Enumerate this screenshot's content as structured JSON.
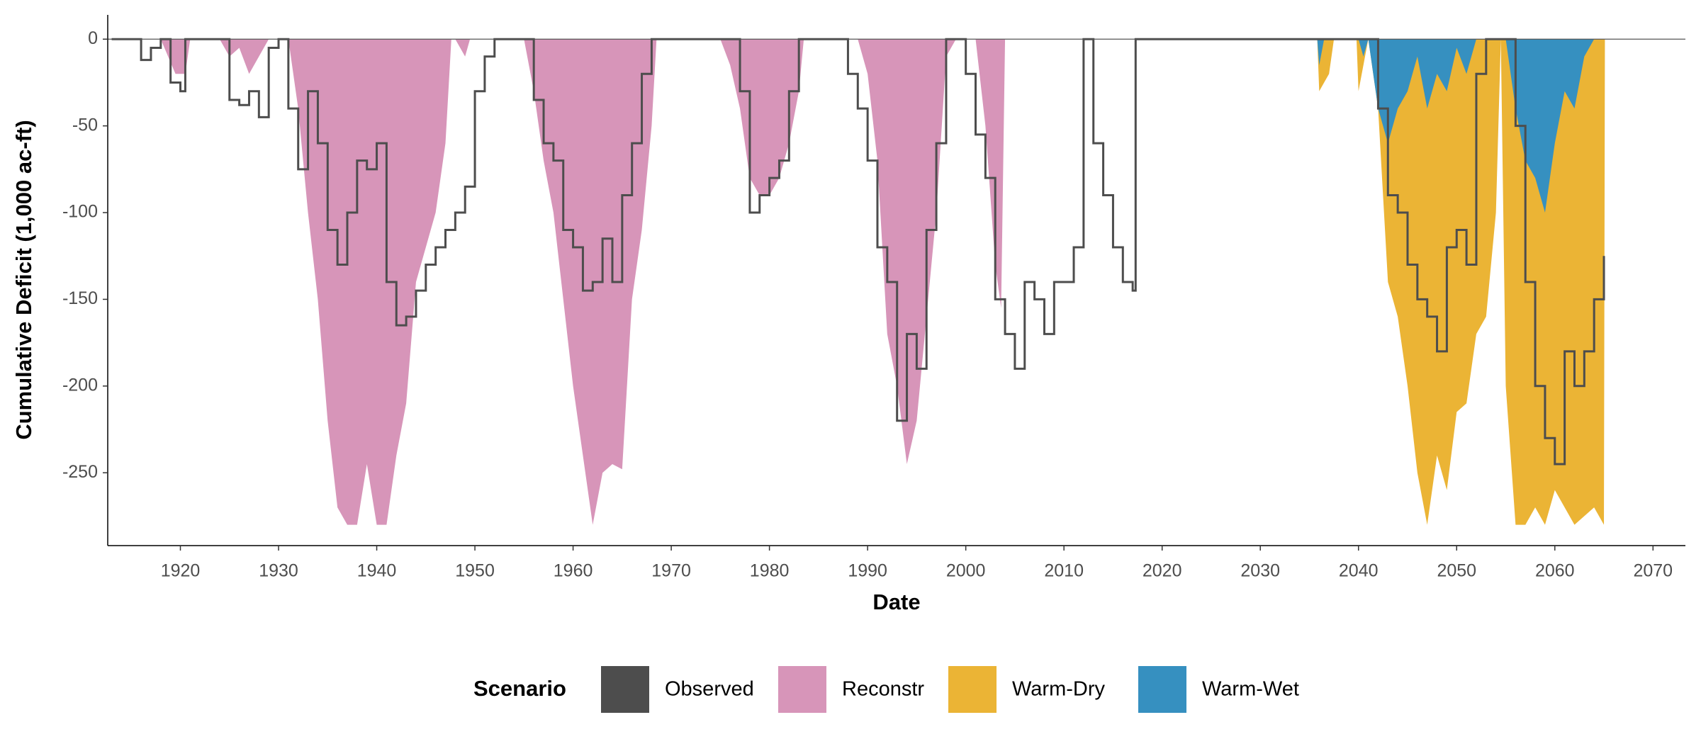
{
  "chart_data": {
    "type": "area",
    "x_label": "Date",
    "y_label": "Cumulative Deficit (1,000 ac-ft)",
    "legend_title": "Scenario",
    "legend_position": "bottom",
    "xlim": [
      1912.6,
      2073.3
    ],
    "ylim": [
      -292,
      14
    ],
    "xticks": [
      1920,
      1930,
      1940,
      1950,
      1960,
      1970,
      1980,
      1990,
      2000,
      2010,
      2020,
      2030,
      2040,
      2050,
      2060,
      2070
    ],
    "yticks": [
      -250,
      -200,
      -150,
      -100,
      -50,
      0
    ],
    "hline": 0,
    "series": [
      {
        "name": "Observed",
        "color": "#4d4d4d",
        "kind": "line",
        "step": true,
        "x": [
          1913,
          1915,
          1916,
          1917,
          1918,
          1919,
          1920,
          1920.5,
          1924,
          1925,
          1926,
          1927,
          1928,
          1929,
          1930,
          1931,
          1932,
          1933,
          1934,
          1935,
          1936,
          1937,
          1938,
          1939,
          1940,
          1941,
          1942,
          1943,
          1944,
          1945,
          1946,
          1947,
          1948,
          1949,
          1950,
          1951,
          1952,
          1955,
          1956,
          1957,
          1958,
          1959,
          1960,
          1961,
          1962,
          1963,
          1964,
          1965,
          1966,
          1967,
          1968,
          1975,
          1977,
          1978,
          1979,
          1980,
          1981,
          1982,
          1983,
          1987,
          1988,
          1989,
          1990,
          1991,
          1992,
          1993,
          1994,
          1995,
          1996,
          1997,
          1998,
          1999,
          2000,
          2001,
          2002,
          2003,
          2004,
          2005,
          2006,
          2007,
          2008,
          2009,
          2010,
          2011,
          2012,
          2013,
          2014,
          2015,
          2016,
          2017,
          2017.3,
          2041,
          2042,
          2043,
          2044,
          2045,
          2046,
          2047,
          2048,
          2049,
          2050,
          2051,
          2052,
          2053,
          2055,
          2056,
          2057,
          2058,
          2059,
          2060,
          2061,
          2062,
          2063,
          2064,
          2065
        ],
        "values": [
          0,
          0,
          -12,
          -5,
          0,
          -25,
          -30,
          0,
          0,
          -35,
          -38,
          -30,
          -45,
          -5,
          0,
          -40,
          -75,
          -30,
          -60,
          -110,
          -130,
          -100,
          -70,
          -75,
          -60,
          -140,
          -165,
          -160,
          -145,
          -130,
          -120,
          -110,
          -100,
          -85,
          -30,
          -10,
          0,
          0,
          -35,
          -60,
          -70,
          -110,
          -120,
          -145,
          -140,
          -115,
          -140,
          -90,
          -60,
          -20,
          0,
          0,
          -30,
          -100,
          -90,
          -80,
          -70,
          -30,
          0,
          0,
          -20,
          -40,
          -70,
          -120,
          -140,
          -220,
          -170,
          -190,
          -110,
          -60,
          0,
          0,
          -20,
          -55,
          -80,
          -150,
          -170,
          -190,
          -140,
          -150,
          -170,
          -140,
          -140,
          -120,
          0,
          -60,
          -90,
          -120,
          -140,
          -145,
          0,
          0,
          -40,
          -90,
          -100,
          -130,
          -150,
          -160,
          -180,
          -120,
          -110,
          -130,
          -20,
          0,
          0,
          -50,
          -140,
          -200,
          -230,
          -245,
          -180,
          -200,
          -180,
          -150,
          -125
        ]
      },
      {
        "name": "Reconstr",
        "color": "#d795b9",
        "kind": "area",
        "x": [
          1913,
          1918,
          1919.5,
          1920.5,
          1921,
          1924,
          1925,
          1926,
          1927,
          1928,
          1929,
          1931,
          1932,
          1933,
          1934,
          1935,
          1936,
          1937,
          1938,
          1939,
          1940,
          1941,
          1942,
          1943,
          1944,
          1945,
          1946,
          1947,
          1947.6,
          1948,
          1949,
          1949.5,
          1955,
          1956,
          1957,
          1958,
          1959,
          1960,
          1961,
          1962,
          1963,
          1964,
          1965,
          1966,
          1967,
          1968,
          1968.5,
          1975,
          1976,
          1977,
          1978,
          1979,
          1980,
          1981,
          1982,
          1983,
          1983.5,
          1989,
          1990,
          1991,
          1992,
          1993,
          1994,
          1995,
          1996,
          1997,
          1998,
          1999,
          2001,
          2002,
          2003,
          2003.6,
          2004
        ],
        "values": [
          0,
          0,
          -20,
          -20,
          0,
          0,
          -10,
          -5,
          -20,
          -10,
          0,
          0,
          -40,
          -100,
          -150,
          -220,
          -270,
          -280,
          -280,
          -245,
          -280,
          -280,
          -240,
          -210,
          -140,
          -120,
          -100,
          -60,
          0,
          0,
          -10,
          0,
          0,
          -30,
          -70,
          -100,
          -150,
          -200,
          -240,
          -280,
          -250,
          -245,
          -248,
          -150,
          -110,
          -50,
          0,
          0,
          -15,
          -40,
          -80,
          -90,
          -90,
          -80,
          -60,
          -30,
          0,
          0,
          -20,
          -70,
          -170,
          -200,
          -245,
          -220,
          -160,
          -100,
          -10,
          0,
          0,
          -50,
          -130,
          -155,
          0
        ]
      },
      {
        "name": "Warm-Dry",
        "color": "#ebb435",
        "kind": "area",
        "x": [
          2035.8,
          2036,
          2037,
          2037.5,
          2039.8,
          2040,
          2041,
          2042,
          2043,
          2044,
          2045,
          2046,
          2047,
          2048,
          2049,
          2050,
          2051,
          2052,
          2053,
          2054,
          2054.5,
          2055,
          2056,
          2057,
          2058,
          2059,
          2060,
          2061,
          2062,
          2063,
          2064,
          2065,
          2065.1
        ],
        "values": [
          0,
          -30,
          -20,
          0,
          0,
          -30,
          0,
          -40,
          -140,
          -160,
          -200,
          -250,
          -280,
          -240,
          -260,
          -215,
          -210,
          -170,
          -160,
          -100,
          0,
          -200,
          -280,
          -280,
          -270,
          -280,
          -260,
          -270,
          -280,
          -275,
          -270,
          -280,
          0
        ]
      },
      {
        "name": "Warm-Wet",
        "color": "#3690c0",
        "kind": "area",
        "x": [
          2035.8,
          2036,
          2036.5,
          2040,
          2040.5,
          2041,
          2042,
          2043,
          2044,
          2045,
          2046,
          2047,
          2048,
          2049,
          2050,
          2051,
          2052,
          2055,
          2056,
          2057,
          2058,
          2059,
          2060,
          2061,
          2062,
          2063,
          2064
        ],
        "values": [
          0,
          -15,
          0,
          0,
          -10,
          0,
          -40,
          -60,
          -40,
          -30,
          -10,
          -40,
          -20,
          -30,
          -5,
          -20,
          0,
          0,
          -40,
          -70,
          -80,
          -100,
          -60,
          -30,
          -40,
          -10,
          0
        ]
      }
    ]
  }
}
